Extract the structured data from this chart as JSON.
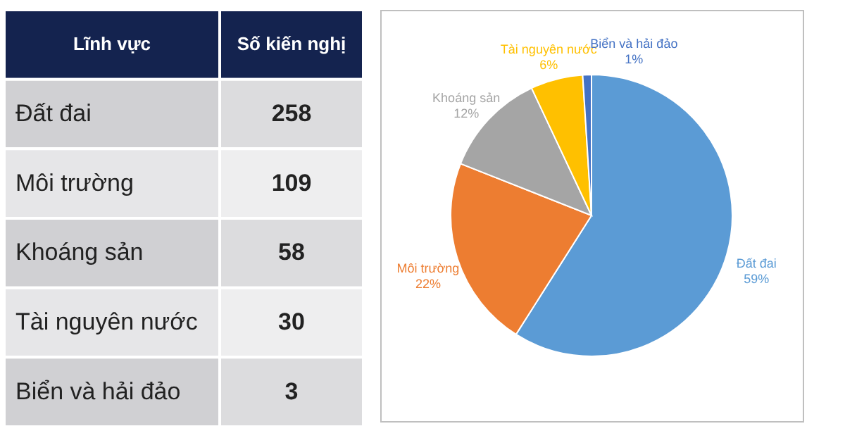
{
  "chart_data": [
    {
      "type": "other",
      "xlabel": "Lĩnh vực",
      "ylabel": "Số kiến nghị",
      "categories": [
        "Đất đai",
        "Môi trường",
        "Khoáng sản",
        "Tài nguyên nước",
        "Biển và hải đảo"
      ],
      "values": [
        258,
        109,
        58,
        30,
        3
      ],
      "data_labels": true
    },
    {
      "type": "pie",
      "categories": [
        "Đất đai",
        "Môi trường",
        "Khoáng sản",
        "Tài nguyên nước",
        "Biển và hải đảo"
      ],
      "values": [
        59,
        22,
        12,
        6,
        1
      ],
      "value_labels": [
        "59%",
        "22%",
        "12%",
        "6%",
        "1%"
      ],
      "colors": [
        "#5b9bd5",
        "#ed7d31",
        "#a5a5a5",
        "#ffc000",
        "#4472c4"
      ]
    }
  ]
}
